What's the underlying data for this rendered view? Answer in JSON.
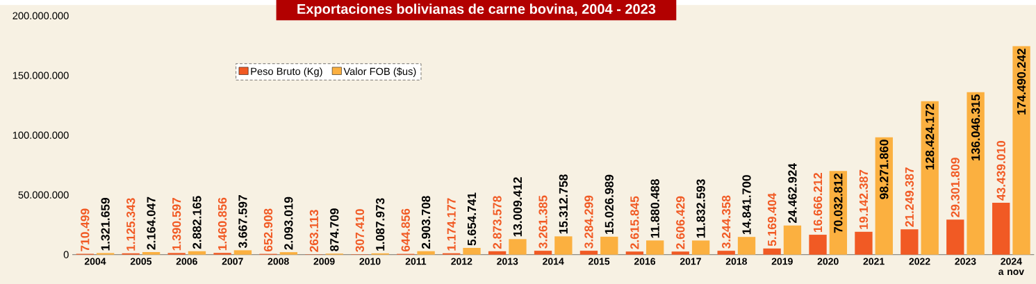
{
  "chart_data": {
    "type": "bar",
    "title": "Exportaciones bolivianas de carne bovina, 2004 - 2023",
    "categories": [
      "2004",
      "2005",
      "2006",
      "2007",
      "2008",
      "2009",
      "2010",
      "2011",
      "2012",
      "2013",
      "2014",
      "2015",
      "2016",
      "2017",
      "2018",
      "2019",
      "2020",
      "2021",
      "2022",
      "2023",
      "2024 a nov"
    ],
    "series": [
      {
        "name": "Peso Bruto (Kg)",
        "color": "#f15a24",
        "values": [
          710499,
          1125343,
          1390597,
          1460856,
          652908,
          263113,
          307410,
          644856,
          1174177,
          2873578,
          3261385,
          3284299,
          2615845,
          2606429,
          3244358,
          5169404,
          16666212,
          19142387,
          21249387,
          29301809,
          43439010
        ],
        "value_labels": [
          "710.499",
          "1.125.343",
          "1.390.597",
          "1.460.856",
          "652.908",
          "263.113",
          "307.410",
          "644.856",
          "1.174.177",
          "2.873.578",
          "3.261.385",
          "3.284.299",
          "2.615.845",
          "2.606.429",
          "3.244.358",
          "5.169.404",
          "16.666.212",
          "19.142.387",
          "21.249.387",
          "29.301.809",
          "43.439.010"
        ]
      },
      {
        "name": "Valor FOB ($us)",
        "color": "#fbb040",
        "values": [
          1321659,
          2164047,
          2882165,
          3667597,
          2093019,
          874709,
          1087973,
          2903708,
          5654741,
          13009412,
          15312758,
          15026989,
          11880488,
          11832593,
          14841700,
          24462924,
          70032812,
          98271860,
          128424172,
          136046315,
          174490242
        ],
        "value_labels": [
          "1.321.659",
          "2.164.047",
          "2.882.165",
          "3.667.597",
          "2.093.019",
          "874.709",
          "1.087.973",
          "2.903.708",
          "5.654.741",
          "13.009.412",
          "15.312.758",
          "15.026.989",
          "11.880.488",
          "11.832.593",
          "14.841.700",
          "24.462.924",
          "70.032.812",
          "98.271.860",
          "128.424.172",
          "136.046.315",
          "174.490.242"
        ]
      }
    ],
    "ylim": [
      0,
      200000000
    ],
    "yticks": [
      0,
      {
        "value": 50000000,
        "label": "50.000.000"
      },
      {
        "value": 100000000,
        "label": "100.000.000"
      },
      {
        "value": 150000000,
        "label": "150.000.000"
      },
      {
        "value": 200000000,
        "label": "200.000.000"
      }
    ],
    "legend": "top left"
  }
}
